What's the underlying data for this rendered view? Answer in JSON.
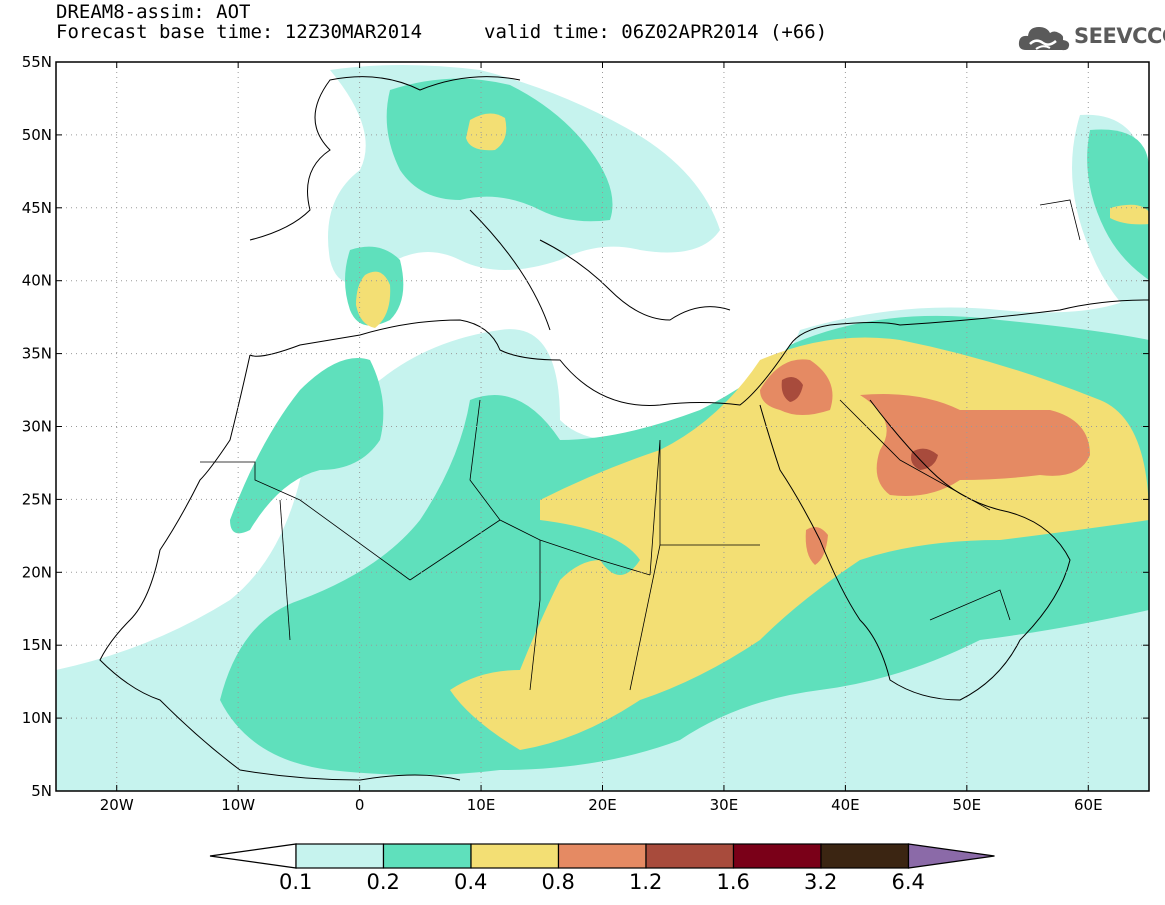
{
  "header": {
    "title_line1": "DREAM8-assim: AOT",
    "title_line2": "Forecast base time: 12Z30MAR2014",
    "valid_time": "valid time: 06Z02APR2014 (+66)"
  },
  "logo": {
    "text": "SEEVCCC",
    "icon": "cloud-icon"
  },
  "map": {
    "lon_range": [
      -25,
      65
    ],
    "lat_range": [
      5,
      55
    ],
    "lat_ticks": [
      {
        "value": 55,
        "label": "55N"
      },
      {
        "value": 50,
        "label": "50N"
      },
      {
        "value": 45,
        "label": "45N"
      },
      {
        "value": 40,
        "label": "40N"
      },
      {
        "value": 35,
        "label": "35N"
      },
      {
        "value": 30,
        "label": "30N"
      },
      {
        "value": 25,
        "label": "25N"
      },
      {
        "value": 20,
        "label": "20N"
      },
      {
        "value": 15,
        "label": "15N"
      },
      {
        "value": 10,
        "label": "10N"
      },
      {
        "value": 5,
        "label": "5N"
      }
    ],
    "lon_ticks": [
      {
        "value": -20,
        "label": "20W"
      },
      {
        "value": -10,
        "label": "10W"
      },
      {
        "value": 0,
        "label": "0"
      },
      {
        "value": 10,
        "label": "10E"
      },
      {
        "value": 20,
        "label": "20E"
      },
      {
        "value": 30,
        "label": "30E"
      },
      {
        "value": 40,
        "label": "40E"
      },
      {
        "value": 50,
        "label": "50E"
      },
      {
        "value": 60,
        "label": "60E"
      }
    ],
    "grid": "dotted"
  },
  "colorbar": {
    "labels": [
      "0.1",
      "0.2",
      "0.4",
      "0.8",
      "1.2",
      "1.6",
      "3.2",
      "6.4"
    ],
    "colors": [
      "#ffffff",
      "#c6f3ee",
      "#5fe0bc",
      "#f3df74",
      "#e58a63",
      "#a84b3c",
      "#7a0018",
      "#3b2512",
      "#8b6aa8"
    ]
  }
}
